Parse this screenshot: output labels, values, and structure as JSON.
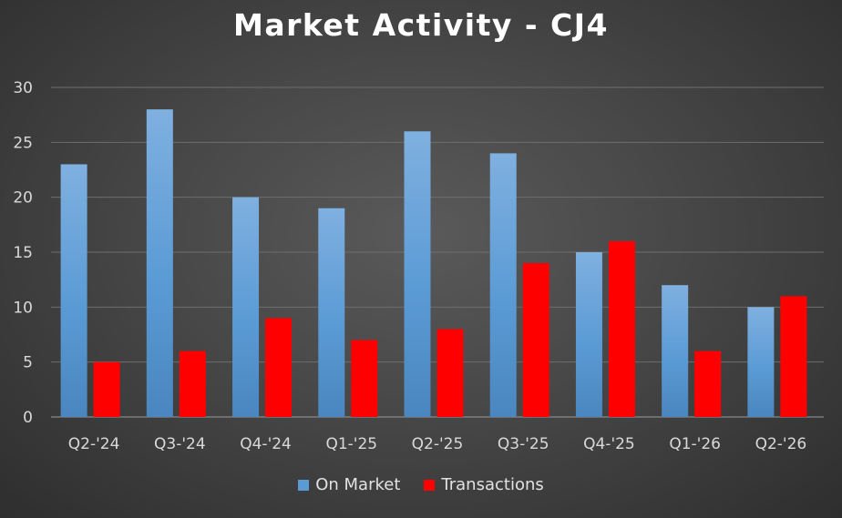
{
  "chart_data": {
    "type": "bar",
    "title": "Market Activity - CJ4",
    "categories": [
      "Q2-'24",
      "Q3-'24",
      "Q4-'24",
      "Q1-'25",
      "Q2-'25",
      "Q3-'25",
      "Q4-'25",
      "Q1-'26",
      "Q2-'26"
    ],
    "series": [
      {
        "name": "On Market",
        "color": "#5b9bd5",
        "values": [
          23,
          28,
          20,
          19,
          26,
          24,
          15,
          12,
          10
        ]
      },
      {
        "name": "Transactions",
        "color": "#ff0000",
        "values": [
          5,
          6,
          9,
          7,
          8,
          14,
          16,
          6,
          11
        ]
      }
    ],
    "ylim": [
      0,
      30
    ],
    "yticks": [
      0,
      5,
      10,
      15,
      20,
      25,
      30
    ],
    "grid": true,
    "legend_position": "bottom",
    "xlabel": "",
    "ylabel": ""
  }
}
